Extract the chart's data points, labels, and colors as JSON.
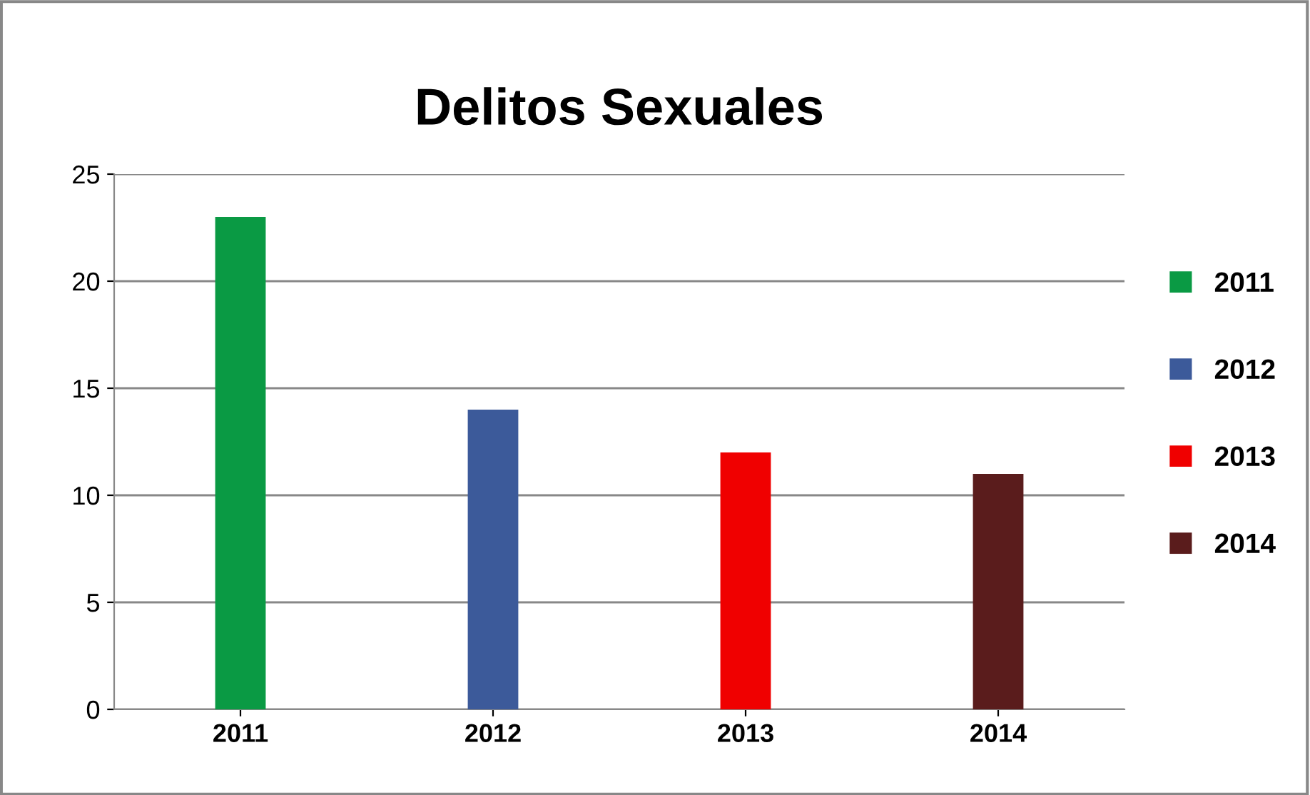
{
  "chart_data": {
    "type": "bar",
    "title": "Delitos Sexuales",
    "categories": [
      "2011",
      "2012",
      "2013",
      "2014"
    ],
    "series": [
      {
        "name": "2011",
        "color": "#0a9a44",
        "values": [
          23,
          null,
          null,
          null
        ]
      },
      {
        "name": "2012",
        "color": "#3c5a9a",
        "values": [
          null,
          14,
          null,
          null
        ]
      },
      {
        "name": "2013",
        "color": "#f00000",
        "values": [
          null,
          null,
          12,
          null
        ]
      },
      {
        "name": "2014",
        "color": "#5a1c1c",
        "values": [
          null,
          null,
          null,
          11
        ]
      }
    ],
    "ylim": [
      0,
      25
    ],
    "yticks": [
      0,
      5,
      10,
      15,
      20,
      25
    ],
    "grid": "y",
    "legend": "right"
  }
}
